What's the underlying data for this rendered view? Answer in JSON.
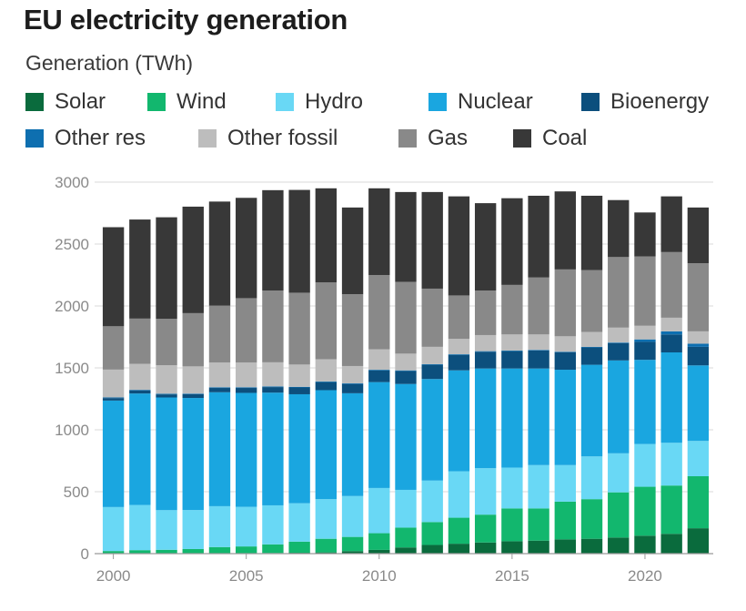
{
  "header": {
    "title": "EU electricity generation",
    "subtitle": "Generation (TWh)"
  },
  "legend": [
    {
      "name": "Solar",
      "color": "#0a6b3d"
    },
    {
      "name": "Wind",
      "color": "#12b76e"
    },
    {
      "name": "Hydro",
      "color": "#69d8f5"
    },
    {
      "name": "Nuclear",
      "color": "#1aa6e0"
    },
    {
      "name": "Bioenergy",
      "color": "#0c4f7d"
    },
    {
      "name": "Other res",
      "color": "#0e6fb0"
    },
    {
      "name": "Other fossil",
      "color": "#bdbdbd"
    },
    {
      "name": "Gas",
      "color": "#898989"
    },
    {
      "name": "Coal",
      "color": "#383838"
    }
  ],
  "chart_data": {
    "type": "bar",
    "stacked": true,
    "title": "EU electricity generation",
    "ylabel": "Generation (TWh)",
    "xlabel": "",
    "ylim": [
      0,
      3000
    ],
    "yticks": [
      0,
      500,
      1000,
      1500,
      2000,
      2500,
      3000
    ],
    "xticks": [
      "2000",
      "2005",
      "2010",
      "2015",
      "2020"
    ],
    "categories": [
      "2000",
      "2001",
      "2002",
      "2003",
      "2004",
      "2005",
      "2006",
      "2007",
      "2008",
      "2009",
      "2010",
      "2011",
      "2012",
      "2013",
      "2014",
      "2015",
      "2016",
      "2017",
      "2018",
      "2019",
      "2020",
      "2021",
      "2022"
    ],
    "series": [
      {
        "name": "Solar",
        "values": [
          1,
          1,
          1,
          2,
          3,
          3,
          5,
          7,
          10,
          20,
          30,
          50,
          70,
          80,
          90,
          100,
          105,
          115,
          120,
          130,
          145,
          160,
          205
        ]
      },
      {
        "name": "Wind",
        "values": [
          20,
          27,
          30,
          35,
          50,
          55,
          70,
          90,
          110,
          115,
          135,
          160,
          185,
          210,
          225,
          265,
          260,
          305,
          320,
          365,
          395,
          390,
          420
        ]
      },
      {
        "name": "Hydro",
        "values": [
          355,
          365,
          320,
          315,
          330,
          320,
          315,
          310,
          320,
          330,
          365,
          305,
          335,
          375,
          375,
          330,
          350,
          295,
          345,
          315,
          345,
          345,
          285
        ]
      },
      {
        "name": "Nuclear",
        "values": [
          860,
          900,
          910,
          905,
          920,
          920,
          910,
          880,
          880,
          830,
          855,
          855,
          820,
          815,
          805,
          800,
          780,
          770,
          740,
          750,
          680,
          730,
          610
        ]
      },
      {
        "name": "Bioenergy",
        "values": [
          20,
          25,
          25,
          30,
          35,
          40,
          45,
          55,
          65,
          75,
          95,
          105,
          115,
          125,
          135,
          140,
          145,
          140,
          140,
          140,
          145,
          145,
          150
        ]
      },
      {
        "name": "Other res",
        "values": [
          5,
          5,
          5,
          5,
          5,
          5,
          5,
          5,
          5,
          5,
          5,
          5,
          5,
          5,
          5,
          5,
          5,
          5,
          5,
          5,
          20,
          25,
          25
        ]
      },
      {
        "name": "Other fossil",
        "values": [
          225,
          210,
          230,
          220,
          200,
          200,
          195,
          180,
          180,
          140,
          165,
          135,
          140,
          125,
          130,
          130,
          125,
          125,
          120,
          120,
          110,
          110,
          100
        ]
      },
      {
        "name": "Gas",
        "values": [
          350,
          365,
          375,
          430,
          460,
          520,
          580,
          580,
          620,
          580,
          600,
          580,
          470,
          350,
          360,
          400,
          460,
          540,
          500,
          570,
          560,
          530,
          550
        ]
      },
      {
        "name": "Coal",
        "values": [
          800,
          800,
          820,
          860,
          840,
          810,
          810,
          830,
          760,
          700,
          700,
          725,
          780,
          800,
          705,
          700,
          660,
          630,
          600,
          460,
          355,
          450,
          450
        ]
      }
    ]
  }
}
